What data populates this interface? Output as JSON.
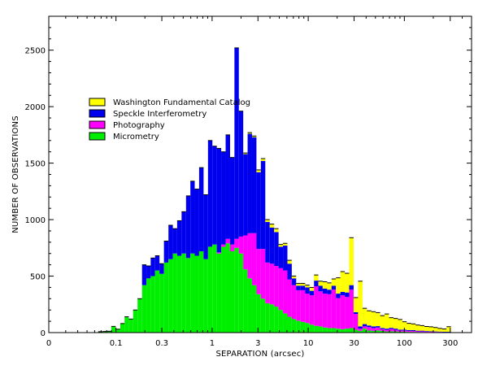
{
  "chart_data": {
    "type": "bar",
    "stacked": true,
    "xlabel": "SEPARATION (arcsec)",
    "ylabel": "NUMBER OF OBSERVATIONS",
    "xscale": "log",
    "xlim": [
      0.02,
      500
    ],
    "ylim": [
      0,
      2800
    ],
    "x_ticks": [
      {
        "value": 0.02,
        "label": "0"
      },
      {
        "value": 0.1,
        "label": "0.1"
      },
      {
        "value": 0.3,
        "label": "0.3"
      },
      {
        "value": 1,
        "label": "1"
      },
      {
        "value": 3,
        "label": "3"
      },
      {
        "value": 10,
        "label": "10"
      },
      {
        "value": 30,
        "label": "30"
      },
      {
        "value": 100,
        "label": "100"
      },
      {
        "value": 300,
        "label": "300"
      }
    ],
    "y_ticks": [
      0,
      500,
      1000,
      1500,
      2000,
      2500
    ],
    "legend_position": "upper-left",
    "x": [
      0.069,
      0.077,
      0.085,
      0.094,
      0.105,
      0.117,
      0.129,
      0.143,
      0.159,
      0.177,
      0.197,
      0.218,
      0.242,
      0.269,
      0.299,
      0.333,
      0.371,
      0.411,
      0.456,
      0.508,
      0.565,
      0.625,
      0.695,
      0.773,
      0.86,
      0.955,
      1.06,
      1.18,
      1.31,
      1.46,
      1.62,
      1.8,
      2.0,
      2.22,
      2.47,
      2.74,
      3.05,
      3.39,
      3.77,
      4.19,
      4.66,
      5.18,
      5.76,
      6.4,
      7.1,
      7.9,
      8.8,
      9.8,
      10.9,
      12.1,
      13.4,
      14.9,
      16.6,
      18.4,
      20.5,
      22.8,
      25.3,
      28.1,
      31.3,
      34.8,
      38.7,
      43.0,
      47.8,
      53.1,
      59.1,
      65.7,
      73.0,
      81.2,
      90.3,
      100.4,
      111.6,
      124.1,
      138.0,
      153.4,
      170.5,
      189.6,
      210.8,
      234.4,
      260.6,
      289.7
    ],
    "series": [
      {
        "name": "Micrometry",
        "color": "#00ee00",
        "values": [
          8,
          10,
          12,
          55,
          30,
          80,
          140,
          120,
          200,
          300,
          420,
          480,
          500,
          550,
          520,
          620,
          650,
          700,
          680,
          700,
          660,
          700,
          680,
          720,
          650,
          760,
          780,
          700,
          760,
          790,
          720,
          750,
          700,
          560,
          480,
          420,
          340,
          300,
          260,
          250,
          230,
          200,
          170,
          140,
          120,
          105,
          95,
          85,
          70,
          60,
          55,
          45,
          40,
          40,
          35,
          30,
          35,
          40,
          25,
          15,
          35,
          18,
          15,
          20,
          15,
          10,
          12,
          10,
          8,
          8,
          6,
          6,
          5,
          5,
          4,
          3,
          3,
          3,
          2,
          2
        ]
      },
      {
        "name": "Photography",
        "color": "#ff00ff",
        "values": [
          0,
          0,
          0,
          0,
          0,
          0,
          0,
          0,
          0,
          0,
          0,
          0,
          0,
          0,
          0,
          0,
          0,
          0,
          0,
          0,
          0,
          0,
          0,
          0,
          0,
          0,
          0,
          10,
          20,
          40,
          60,
          80,
          150,
          300,
          400,
          460,
          400,
          440,
          360,
          360,
          360,
          370,
          380,
          330,
          300,
          270,
          280,
          260,
          260,
          350,
          310,
          300,
          300,
          340,
          270,
          300,
          280,
          340,
          140,
          20,
          20,
          30,
          25,
          25,
          15,
          15,
          20,
          15,
          10,
          10,
          8,
          8,
          6,
          6,
          5,
          4,
          3,
          3,
          2,
          2
        ]
      },
      {
        "name": "Speckle Interferometry",
        "color": "#0000ee",
        "values": [
          0,
          0,
          0,
          0,
          0,
          0,
          0,
          0,
          0,
          0,
          180,
          110,
          160,
          130,
          90,
          190,
          300,
          220,
          310,
          370,
          550,
          640,
          590,
          740,
          570,
          940,
          870,
          920,
          820,
          920,
          770,
          1690,
          1110,
          720,
          880,
          850,
          680,
          780,
          360,
          320,
          300,
          190,
          220,
          140,
          60,
          40,
          40,
          55,
          40,
          50,
          50,
          45,
          40,
          35,
          40,
          30,
          40,
          40,
          15,
          20,
          20,
          15,
          15,
          12,
          10,
          10,
          10,
          10,
          8,
          8,
          8,
          8,
          6,
          6,
          5,
          4,
          4,
          3,
          3,
          3
        ]
      },
      {
        "name": "Washington Fundamental Catalog",
        "color": "#ffff00",
        "values": [
          0,
          0,
          0,
          0,
          0,
          0,
          0,
          0,
          0,
          0,
          0,
          0,
          0,
          0,
          0,
          0,
          0,
          0,
          0,
          0,
          0,
          0,
          0,
          0,
          0,
          0,
          0,
          0,
          0,
          0,
          0,
          0,
          0,
          10,
          10,
          10,
          20,
          20,
          20,
          30,
          30,
          20,
          20,
          30,
          20,
          20,
          20,
          20,
          30,
          50,
          40,
          60,
          60,
          60,
          140,
          180,
          170,
          420,
          130,
          400,
          140,
          130,
          130,
          120,
          110,
          130,
          90,
          90,
          90,
          70,
          60,
          55,
          50,
          45,
          40,
          40,
          35,
          28,
          25,
          45
        ]
      }
    ]
  }
}
